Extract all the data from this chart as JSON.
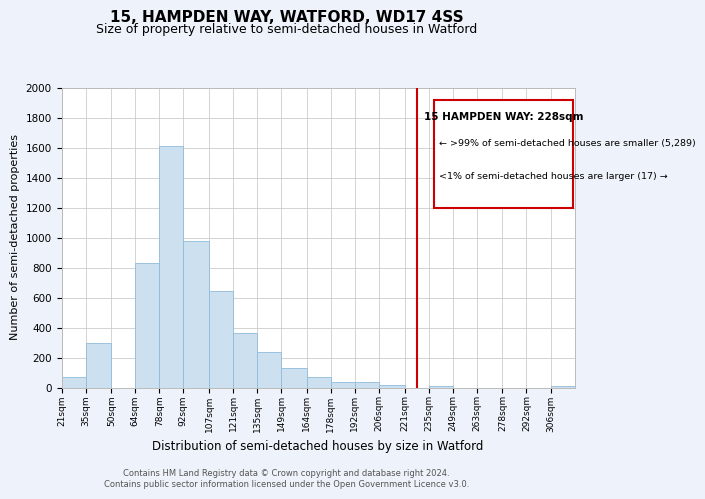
{
  "title": "15, HAMPDEN WAY, WATFORD, WD17 4SS",
  "subtitle": "Size of property relative to semi-detached houses in Watford",
  "xlabel": "Distribution of semi-detached houses by size in Watford",
  "ylabel": "Number of semi-detached properties",
  "bin_labels": [
    "21sqm",
    "35sqm",
    "50sqm",
    "64sqm",
    "78sqm",
    "92sqm",
    "107sqm",
    "121sqm",
    "135sqm",
    "149sqm",
    "164sqm",
    "178sqm",
    "192sqm",
    "206sqm",
    "221sqm",
    "235sqm",
    "249sqm",
    "263sqm",
    "278sqm",
    "292sqm",
    "306sqm"
  ],
  "bar_heights": [
    70,
    300,
    0,
    830,
    1610,
    975,
    645,
    365,
    235,
    130,
    70,
    35,
    35,
    20,
    0,
    10,
    0,
    0,
    0,
    0,
    10
  ],
  "bar_color": "#cce0f0",
  "bar_edge_color": "#90bbda",
  "grid_color": "#cccccc",
  "vline_x": 228,
  "vline_label": "15 HAMPDEN WAY: 228sqm",
  "legend_smaller": ">99% of semi-detached houses are smaller (5,289)",
  "legend_larger": "<1% of semi-detached houses are larger (17)",
  "footnote1": "Contains HM Land Registry data © Crown copyright and database right 2024.",
  "footnote2": "Contains public sector information licensed under the Open Government Licence v3.0.",
  "ylim": [
    0,
    2000
  ],
  "title_fontsize": 11,
  "subtitle_fontsize": 9,
  "tick_fontsize": 6.5,
  "ylabel_fontsize": 8,
  "xlabel_fontsize": 8.5,
  "background_color": "#eef2fa",
  "axes_background_color": "#ffffff",
  "vline_color": "#cc0000",
  "legend_box_color": "#cc0000",
  "bin_edges": [
    21,
    35,
    50,
    64,
    78,
    92,
    107,
    121,
    135,
    149,
    164,
    178,
    192,
    206,
    221,
    235,
    249,
    263,
    278,
    292,
    306,
    320
  ],
  "yticks": [
    0,
    200,
    400,
    600,
    800,
    1000,
    1200,
    1400,
    1600,
    1800,
    2000
  ]
}
